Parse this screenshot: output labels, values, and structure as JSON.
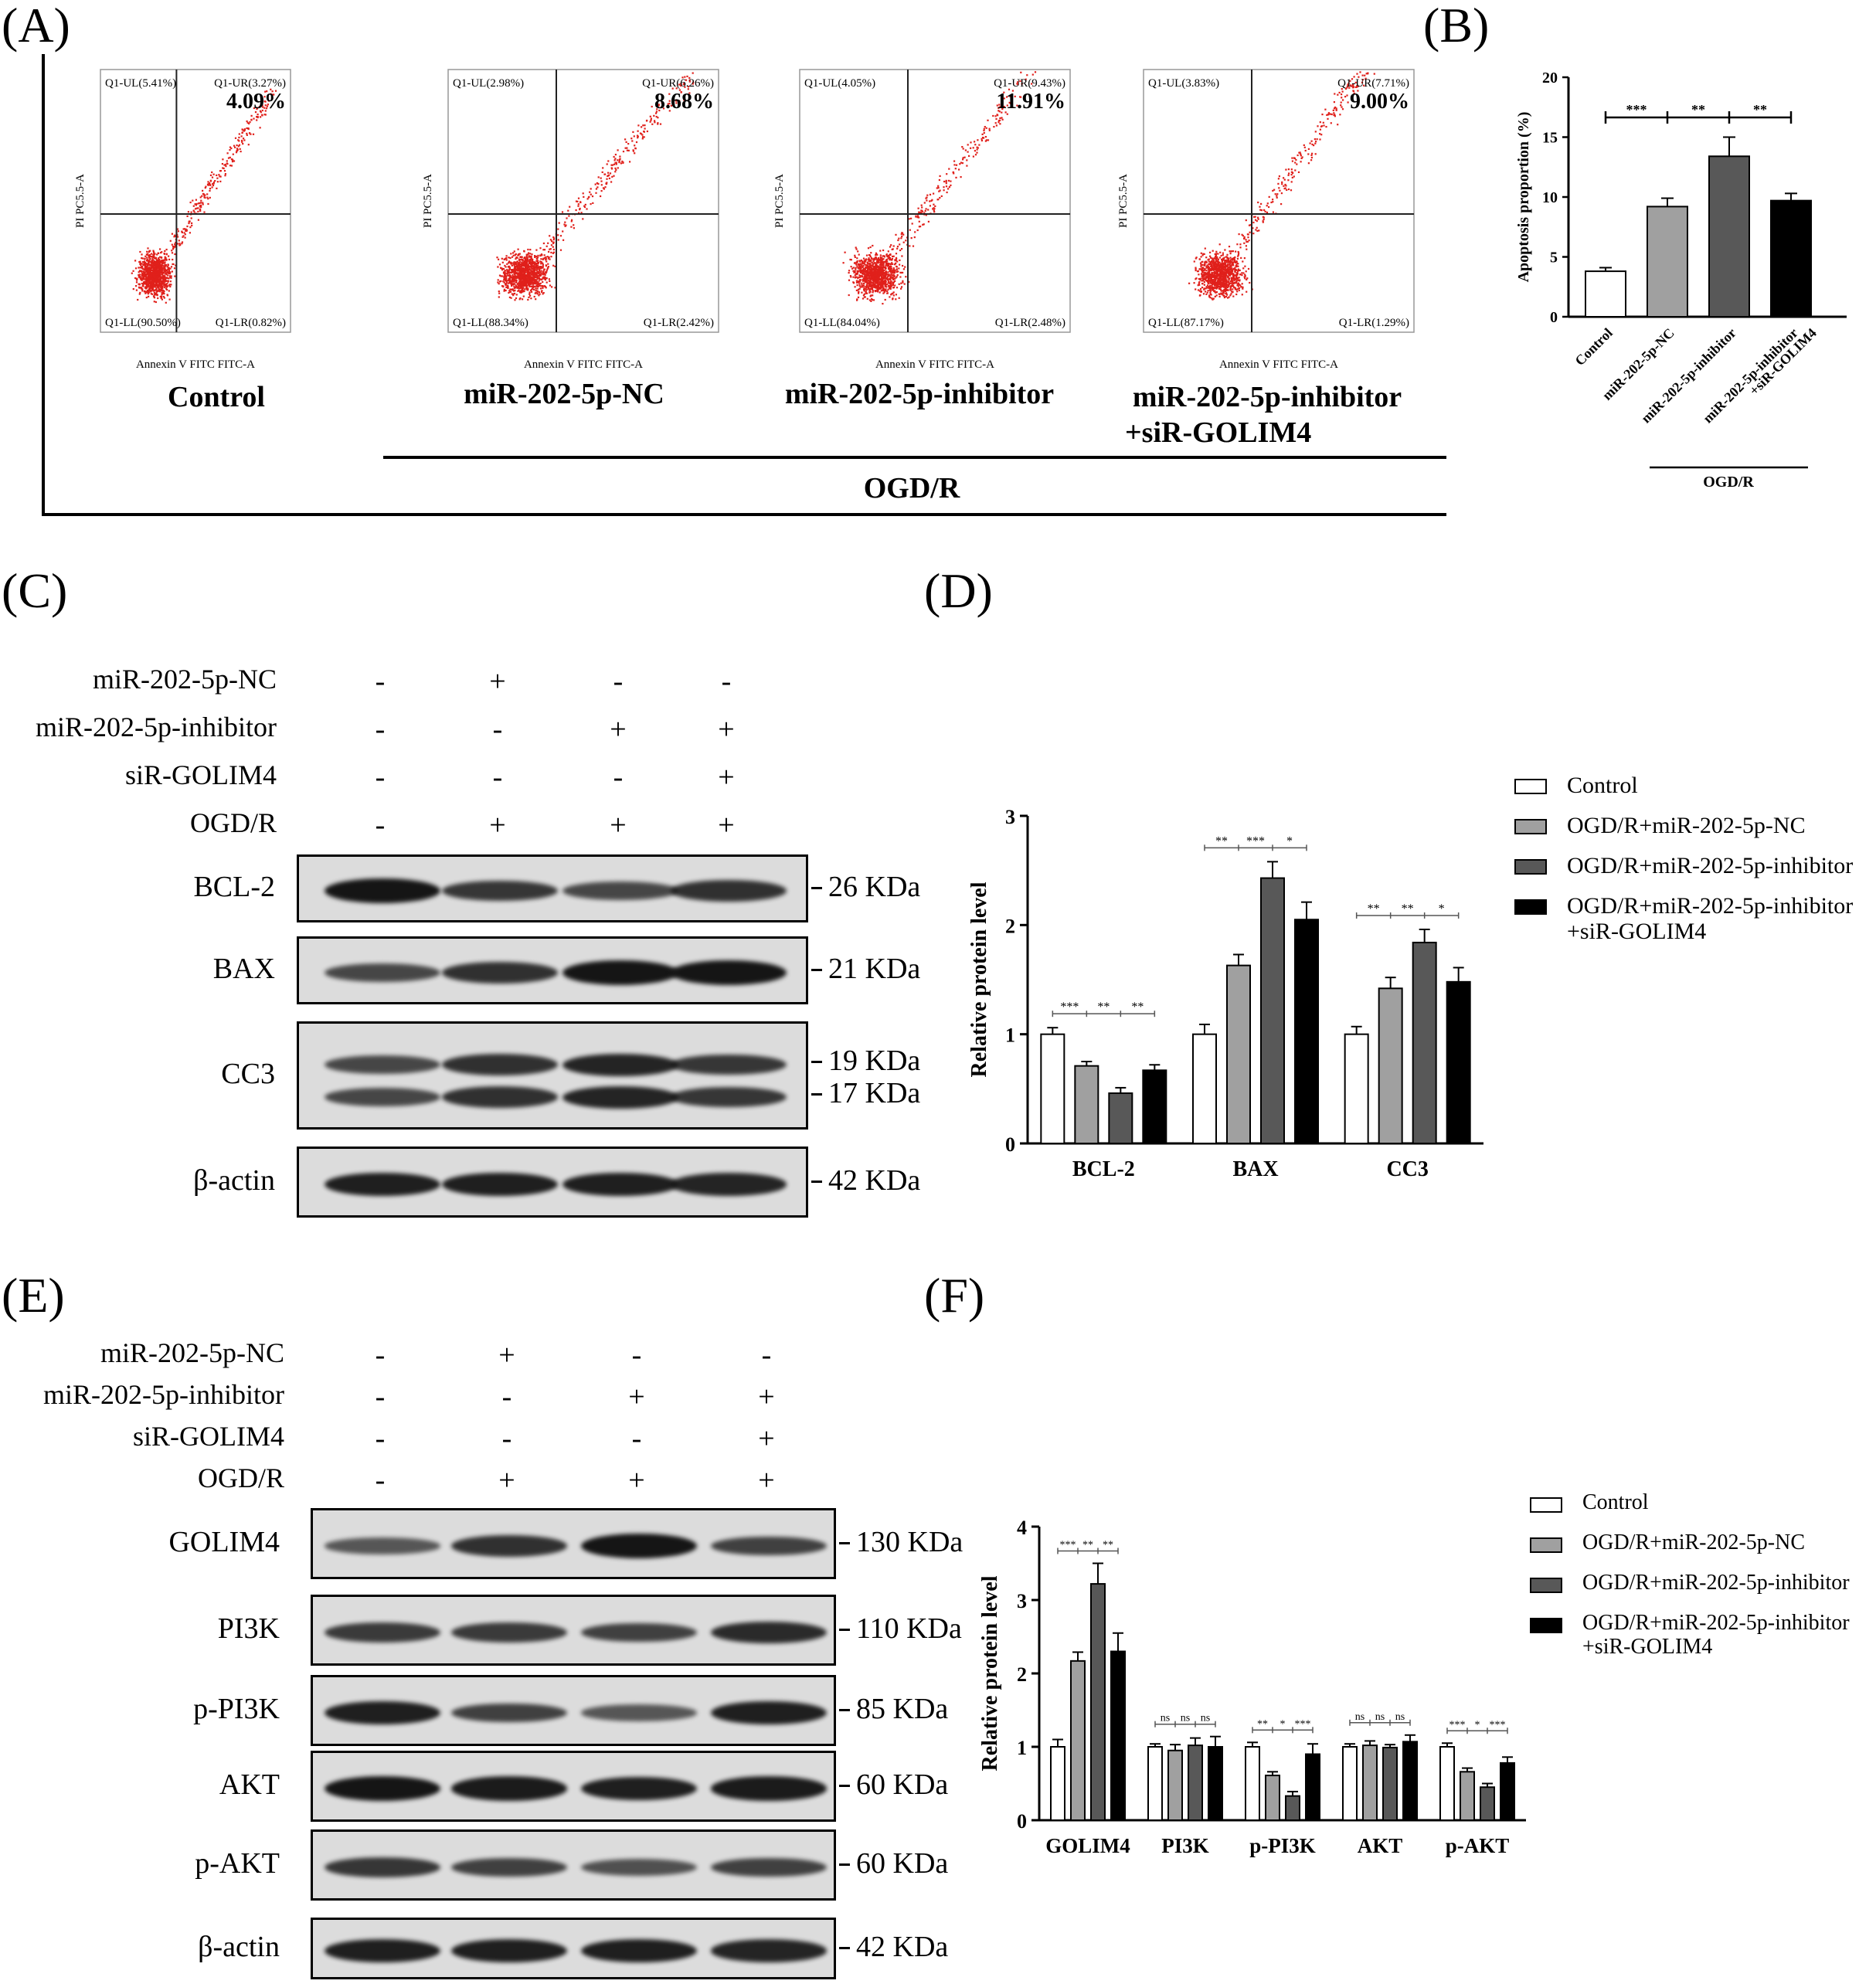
{
  "panel_labels": {
    "a": "(A)",
    "b": "(B)",
    "c": "(C)",
    "d": "(D)",
    "e": "(E)",
    "f": "(F)"
  },
  "colors": {
    "control": "#ffffff",
    "nc": "#a0a0a0",
    "inhibitor": "#585858",
    "inhibitor_si": "#000000",
    "flow_dots": "#e0201b"
  },
  "flow": {
    "ylabel": "PI PC5.5-A",
    "xlabel": "Annexin V FITC FITC-A",
    "ogd_label": "OGD/R",
    "plots": [
      {
        "name": "Control",
        "ul": "Q1-UL(5.41%)",
        "ur": "Q1-UR(3.27%)",
        "total": "4.09%",
        "ll": "Q1-LL(90.50%)",
        "lr": "Q1-LR(0.82%)"
      },
      {
        "name": "miR-202-5p-NC",
        "ul": "Q1-UL(2.98%)",
        "ur": "Q1-UR(6.26%)",
        "total": "8.68%",
        "ll": "Q1-LL(88.34%)",
        "lr": "Q1-LR(2.42%)"
      },
      {
        "name": "miR-202-5p-inhibitor",
        "ul": "Q1-UL(4.05%)",
        "ur": "Q1-UR(9.43%)",
        "total": "11.91%",
        "ll": "Q1-LL(84.04%)",
        "lr": "Q1-LR(2.48%)"
      },
      {
        "name": "miR-202-5p-inhibitor\n+siR-GOLIM4",
        "name1": "miR-202-5p-inhibitor",
        "name2": "+siR-GOLIM4",
        "ul": "Q1-UL(3.83%)",
        "ur": "Q1-UR(7.71%)",
        "total": "9.00%",
        "ll": "Q1-LL(87.17%)",
        "lr": "Q1-LR(1.29%)"
      }
    ]
  },
  "blot_c": {
    "conditions": [
      {
        "label": "miR-202-5p-NC",
        "signs": [
          "-",
          "+",
          "-",
          "-"
        ]
      },
      {
        "label": "miR-202-5p-inhibitor",
        "signs": [
          "-",
          "-",
          "+",
          "+"
        ]
      },
      {
        "label": "siR-GOLIM4",
        "signs": [
          "-",
          "-",
          "-",
          "+"
        ]
      },
      {
        "label": "OGD/R",
        "signs": [
          "-",
          "+",
          "+",
          "+"
        ]
      }
    ],
    "rows": [
      {
        "label": "BCL-2",
        "kda": [
          "26 KDa"
        ]
      },
      {
        "label": "BAX",
        "kda": [
          "21 KDa"
        ]
      },
      {
        "label": "CC3",
        "kda": [
          "19 KDa",
          "17 KDa"
        ]
      },
      {
        "label": "β-actin",
        "kda": [
          "42 KDa"
        ]
      }
    ]
  },
  "blot_e": {
    "conditions": [
      {
        "label": "miR-202-5p-NC",
        "signs": [
          "-",
          "+",
          "-",
          "-"
        ]
      },
      {
        "label": "miR-202-5p-inhibitor",
        "signs": [
          "-",
          "-",
          "+",
          "+"
        ]
      },
      {
        "label": "siR-GOLIM4",
        "signs": [
          "-",
          "-",
          "-",
          "+"
        ]
      },
      {
        "label": "OGD/R",
        "signs": [
          "-",
          "+",
          "+",
          "+"
        ]
      }
    ],
    "rows": [
      {
        "label": "GOLIM4",
        "kda": [
          "130 KDa"
        ]
      },
      {
        "label": "PI3K",
        "kda": [
          "110 KDa"
        ]
      },
      {
        "label": "p-PI3K",
        "kda": [
          "85 KDa"
        ]
      },
      {
        "label": "AKT",
        "kda": [
          "60 KDa"
        ]
      },
      {
        "label": "p-AKT",
        "kda": [
          "60 KDa"
        ]
      },
      {
        "label": "β-actin",
        "kda": [
          "42 KDa"
        ]
      }
    ]
  },
  "chart_data": [
    {
      "id": "B",
      "type": "bar",
      "ylabel": "Apoptosis proportion (%)",
      "ylim": [
        0,
        20
      ],
      "yticks": [
        0,
        5,
        10,
        15,
        20
      ],
      "categories": [
        "Control",
        "miR-202-5p-NC",
        "miR-202-5p-inhibitor",
        "miR-202-5p-inhibitor\n+siR-GOLIM4"
      ],
      "values": [
        3.8,
        9.2,
        13.4,
        9.7
      ],
      "errors": [
        0.3,
        0.7,
        1.6,
        0.6
      ],
      "significance": [
        "***",
        "**",
        "**"
      ],
      "group_label": "OGD/R"
    },
    {
      "id": "D",
      "type": "bar",
      "ylabel": "Relative protein level",
      "ylim": [
        0,
        3
      ],
      "yticks": [
        0,
        1,
        2,
        3
      ],
      "categories": [
        "BCL-2",
        "BAX",
        "CC3"
      ],
      "series": [
        {
          "name": "Control",
          "values": [
            1.0,
            1.0,
            1.0
          ],
          "errors": [
            0.06,
            0.09,
            0.07
          ]
        },
        {
          "name": "OGD/R+miR-202-5p-NC",
          "values": [
            0.71,
            1.63,
            1.42
          ],
          "errors": [
            0.04,
            0.1,
            0.1
          ]
        },
        {
          "name": "OGD/R+miR-202-5p-inhibitor",
          "values": [
            0.46,
            2.43,
            1.84
          ],
          "errors": [
            0.05,
            0.15,
            0.12
          ]
        },
        {
          "name": "OGD/R+miR-202-5p-inhibitor\n+siR-GOLIM4",
          "values": [
            0.67,
            2.05,
            1.48
          ],
          "errors": [
            0.05,
            0.16,
            0.13
          ]
        }
      ],
      "significance": [
        [
          "***",
          "**",
          "**"
        ],
        [
          "**",
          "***",
          "*"
        ],
        [
          "**",
          "**",
          "*"
        ]
      ],
      "legend_position": "top-right"
    },
    {
      "id": "F",
      "type": "bar",
      "ylabel": "Relative protein level",
      "ylim": [
        0,
        4
      ],
      "yticks": [
        0,
        1,
        2,
        3,
        4
      ],
      "categories": [
        "GOLIM4",
        "PI3K",
        "p-PI3K",
        "AKT",
        "p-AKT"
      ],
      "series": [
        {
          "name": "Control",
          "values": [
            1.0,
            1.0,
            1.0,
            1.0,
            1.0
          ],
          "errors": [
            0.1,
            0.04,
            0.06,
            0.04,
            0.05
          ]
        },
        {
          "name": "OGD/R+miR-202-5p-NC",
          "values": [
            2.17,
            0.95,
            0.61,
            1.02,
            0.66
          ],
          "errors": [
            0.12,
            0.08,
            0.05,
            0.06,
            0.05
          ]
        },
        {
          "name": "OGD/R+miR-202-5p-inhibitor",
          "values": [
            3.22,
            1.02,
            0.33,
            0.99,
            0.45
          ],
          "errors": [
            0.28,
            0.1,
            0.06,
            0.04,
            0.05
          ]
        },
        {
          "name": "OGD/R+miR-202-5p-inhibitor\n+siR-GOLIM4",
          "values": [
            2.3,
            1.0,
            0.9,
            1.07,
            0.78
          ],
          "errors": [
            0.25,
            0.14,
            0.14,
            0.09,
            0.08
          ]
        }
      ],
      "significance": [
        [
          "***",
          "**",
          "**"
        ],
        [
          "ns",
          "ns",
          "ns"
        ],
        [
          "**",
          "*",
          "***"
        ],
        [
          "ns",
          "ns",
          "ns"
        ],
        [
          "***",
          "*",
          "***"
        ]
      ],
      "legend_position": "top-right"
    }
  ]
}
